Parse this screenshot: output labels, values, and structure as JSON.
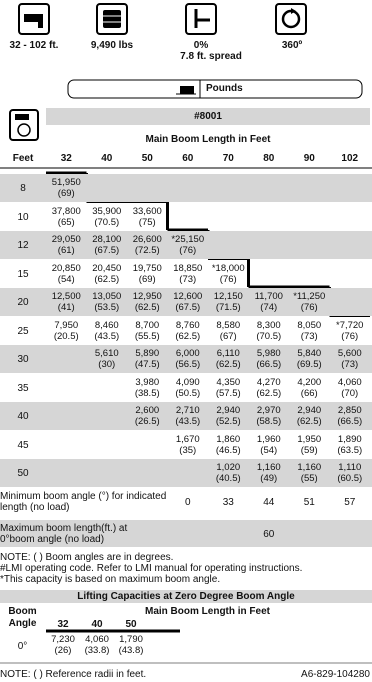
{
  "specs": [
    {
      "label": "32 - 102 ft."
    },
    {
      "label": "9,490 lbs"
    },
    {
      "label": "0%",
      "sub": "7.8 ft. spread"
    },
    {
      "label": "360º"
    }
  ],
  "units": "Pounds",
  "table": {
    "code": "#8001",
    "title": "Main Boom Length in Feet",
    "row_header": "Feet",
    "columns": [
      "32",
      "40",
      "50",
      "60",
      "70",
      "80",
      "90",
      "102"
    ],
    "rows": [
      {
        "radius": "8",
        "cells": [
          [
            "51,950",
            "(69)"
          ],
          null,
          null,
          null,
          null,
          null,
          null,
          null
        ]
      },
      {
        "radius": "10",
        "cells": [
          [
            "37,800",
            "(65)"
          ],
          [
            "35,900",
            "(70.5)"
          ],
          [
            "33,600",
            "(75)"
          ],
          null,
          null,
          null,
          null,
          null
        ]
      },
      {
        "radius": "12",
        "cells": [
          [
            "29,050",
            "(61)"
          ],
          [
            "28,100",
            "(67.5)"
          ],
          [
            "26,600",
            "(72.5)"
          ],
          [
            "*25,150",
            "(76)"
          ],
          null,
          null,
          null,
          null
        ]
      },
      {
        "radius": "15",
        "cells": [
          [
            "20,850",
            "(54)"
          ],
          [
            "20,450",
            "(62.5)"
          ],
          [
            "19,750",
            "(69)"
          ],
          [
            "18,850",
            "(73)"
          ],
          [
            "*18,000",
            "(76)"
          ],
          null,
          null,
          null
        ]
      },
      {
        "radius": "20",
        "cells": [
          [
            "12,500",
            "(41)"
          ],
          [
            "13,050",
            "(53.5)"
          ],
          [
            "12,950",
            "(62.5)"
          ],
          [
            "12,600",
            "(67.5)"
          ],
          [
            "12,150",
            "(71.5)"
          ],
          [
            "11,700",
            "(74)"
          ],
          [
            "*11,250",
            "(76)"
          ],
          null
        ]
      },
      {
        "radius": "25",
        "cells": [
          [
            "7,950",
            "(20.5)"
          ],
          [
            "8,460",
            "(43.5)"
          ],
          [
            "8,700",
            "(55.5)"
          ],
          [
            "8,760",
            "(62.5)"
          ],
          [
            "8,580",
            "(67)"
          ],
          [
            "8,300",
            "(70.5)"
          ],
          [
            "8,050",
            "(73)"
          ],
          [
            "*7,720",
            "(76)"
          ]
        ]
      },
      {
        "radius": "30",
        "cells": [
          null,
          [
            "5,610",
            "(30)"
          ],
          [
            "5,890",
            "(47.5)"
          ],
          [
            "6,000",
            "(56.5)"
          ],
          [
            "6,110",
            "(62.5)"
          ],
          [
            "5,980",
            "(66.5)"
          ],
          [
            "5,840",
            "(69.5)"
          ],
          [
            "5,600",
            "(73)"
          ]
        ]
      },
      {
        "radius": "35",
        "cells": [
          null,
          null,
          [
            "3,980",
            "(38.5)"
          ],
          [
            "4,090",
            "(50.5)"
          ],
          [
            "4,350",
            "(57.5)"
          ],
          [
            "4,270",
            "(62.5)"
          ],
          [
            "4,200",
            "(66)"
          ],
          [
            "4,060",
            "(70)"
          ]
        ]
      },
      {
        "radius": "40",
        "cells": [
          null,
          null,
          [
            "2,600",
            "(26.5)"
          ],
          [
            "2,710",
            "(43.5)"
          ],
          [
            "2,940",
            "(52.5)"
          ],
          [
            "2,970",
            "(58.5)"
          ],
          [
            "2,940",
            "(62.5)"
          ],
          [
            "2,850",
            "(66.5)"
          ]
        ]
      },
      {
        "radius": "45",
        "cells": [
          null,
          null,
          null,
          [
            "1,670",
            "(35)"
          ],
          [
            "1,860",
            "(46.5)"
          ],
          [
            "1,960",
            "(54)"
          ],
          [
            "1,950",
            "(59)"
          ],
          [
            "1,890",
            "(63.5)"
          ]
        ]
      },
      {
        "radius": "50",
        "cells": [
          null,
          null,
          null,
          null,
          [
            "1,020",
            "(40.5)"
          ],
          [
            "1,160",
            "(49)"
          ],
          [
            "1,160",
            "(55)"
          ],
          [
            "1,110",
            "(60.5)"
          ]
        ]
      }
    ],
    "min_angle": {
      "label": "Minimum boom angle (°) for indicated length (no load)",
      "values": [
        null,
        null,
        null,
        "0",
        "33",
        "44",
        "51",
        "57"
      ]
    },
    "max_length": {
      "label": "Maximum boom length(ft.) at 0°boom angle (no load)",
      "values": [
        null,
        null,
        null,
        null,
        null,
        "60",
        null,
        null
      ]
    }
  },
  "notes": [
    "NOTE: ( ) Boom angles are in degrees.",
    "#LMI operating code. Refer to LMI manual for operating instructions.",
    "*This capacity is based on maximum boom angle."
  ],
  "zero_table": {
    "title": "Lifting Capacities at Zero Degree Boom Angle",
    "row_header": [
      "Boom",
      "Angle"
    ],
    "subtitle": "Main Boom Length in Feet",
    "columns": [
      "32",
      "40",
      "50"
    ],
    "rows": [
      {
        "angle": "0°",
        "cells": [
          [
            "7,230",
            "(26)"
          ],
          [
            "4,060",
            "(33.8)"
          ],
          [
            "1,790",
            "(43.8)"
          ]
        ]
      }
    ]
  },
  "footer": {
    "note": "NOTE: ( ) Reference radii in feet.",
    "code": "A6-829-104280"
  }
}
